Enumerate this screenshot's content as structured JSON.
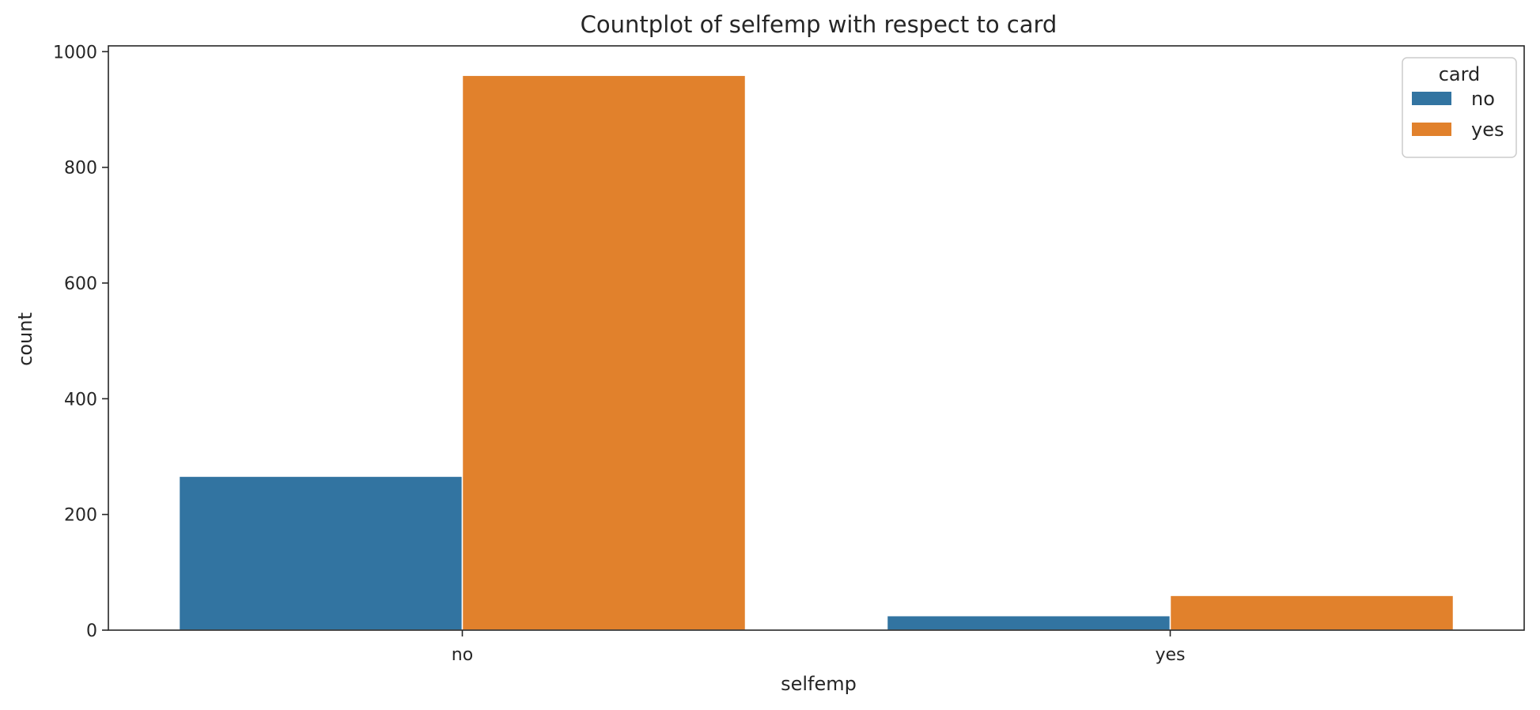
{
  "chart_data": {
    "type": "bar",
    "title": "Countplot of selfemp with respect to card",
    "xlabel": "selfemp",
    "ylabel": "count",
    "categories": [
      "no",
      "yes"
    ],
    "series": [
      {
        "name": "no",
        "color": "#3274a1",
        "values": [
          266,
          25
        ]
      },
      {
        "name": "yes",
        "color": "#e1812c",
        "values": [
          959,
          60
        ]
      }
    ],
    "ylim": [
      0,
      1010
    ],
    "yticks": [
      0,
      200,
      400,
      600,
      800,
      1000
    ],
    "legend": {
      "title": "card",
      "placement": "top-right"
    },
    "grid": false
  }
}
